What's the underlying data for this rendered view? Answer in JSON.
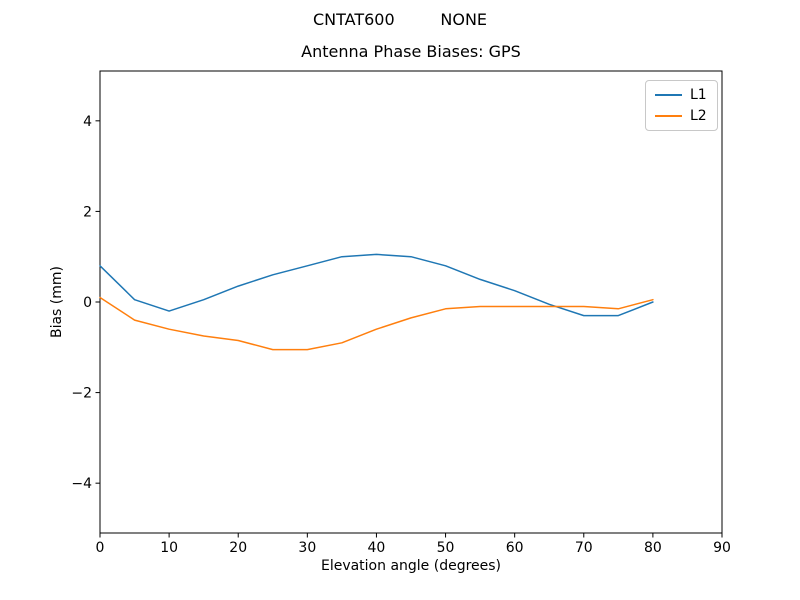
{
  "figure": {
    "suptitle": "CNTAT600         NONE"
  },
  "chart_data": {
    "type": "line",
    "title": "Antenna Phase Biases: GPS",
    "xlabel": "Elevation angle (degrees)",
    "ylabel": "Bias (mm)",
    "xlim": [
      0,
      90
    ],
    "ylim": [
      -5.1,
      5.1
    ],
    "xtick_values": [
      0,
      10,
      20,
      30,
      40,
      50,
      60,
      70,
      80,
      90
    ],
    "xtick_labels": [
      "0",
      "10",
      "20",
      "30",
      "40",
      "50",
      "60",
      "70",
      "80",
      "90"
    ],
    "ytick_values": [
      -4,
      -2,
      0,
      2,
      4
    ],
    "ytick_labels": [
      "−4",
      "−2",
      "0",
      "2",
      "4"
    ],
    "grid": false,
    "legend_position": "upper right",
    "x": [
      0,
      5,
      10,
      15,
      20,
      25,
      30,
      35,
      40,
      45,
      50,
      55,
      60,
      65,
      70,
      75,
      80
    ],
    "series": [
      {
        "name": "L1",
        "color": "#1f77b4",
        "values": [
          0.8,
          0.05,
          -0.2,
          0.05,
          0.35,
          0.6,
          0.8,
          1.0,
          1.05,
          1.0,
          0.8,
          0.5,
          0.25,
          -0.05,
          -0.3,
          -0.3,
          0.0
        ]
      },
      {
        "name": "L2",
        "color": "#ff7f0e",
        "values": [
          0.1,
          -0.4,
          -0.6,
          -0.75,
          -0.85,
          -1.05,
          -1.05,
          -0.9,
          -0.6,
          -0.35,
          -0.15,
          -0.1,
          -0.1,
          -0.1,
          -0.1,
          -0.15,
          0.05
        ]
      }
    ]
  }
}
